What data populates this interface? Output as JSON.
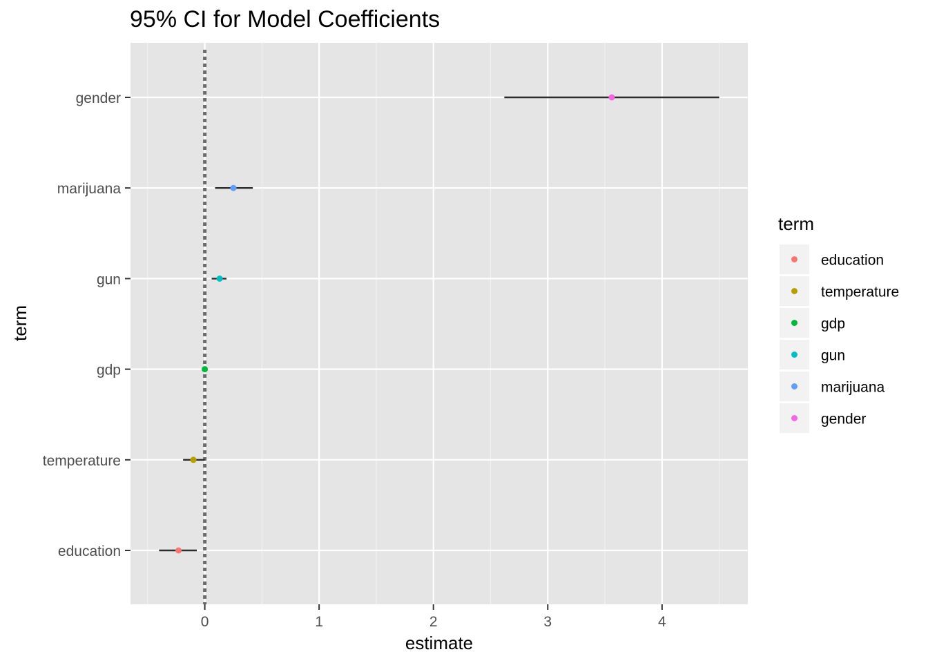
{
  "chart_data": {
    "type": "scatter",
    "title": "95% CI for Model Coefficients",
    "xlabel": "estimate",
    "ylabel": "term",
    "xlim": [
      -0.65,
      4.75
    ],
    "x_ticks": [
      0,
      1,
      2,
      3,
      4
    ],
    "x_tick_labels": [
      "0",
      "1",
      "2",
      "3",
      "4"
    ],
    "x_minor_ticks": [
      -0.5,
      0.5,
      1.5,
      2.5,
      3.5,
      4.5
    ],
    "reference_line": {
      "x": 0,
      "style": "dotted"
    },
    "grid": true,
    "legend": {
      "title": "term",
      "position": "right",
      "entries": [
        "education",
        "temperature",
        "gdp",
        "gun",
        "marijuana",
        "gender"
      ]
    },
    "series": [
      {
        "name": "education",
        "estimate": -0.23,
        "conf_low": -0.4,
        "conf_high": -0.07,
        "color": "#F8766D"
      },
      {
        "name": "temperature",
        "estimate": -0.1,
        "conf_low": -0.19,
        "conf_high": 0.0,
        "color": "#B79F00"
      },
      {
        "name": "gdp",
        "estimate": 0.0,
        "conf_low": 0.0,
        "conf_high": 0.0,
        "color": "#00BA38"
      },
      {
        "name": "gun",
        "estimate": 0.13,
        "conf_low": 0.06,
        "conf_high": 0.19,
        "color": "#00BFC4"
      },
      {
        "name": "marijuana",
        "estimate": 0.25,
        "conf_low": 0.09,
        "conf_high": 0.42,
        "color": "#619CFF"
      },
      {
        "name": "gender",
        "estimate": 3.56,
        "conf_low": 2.62,
        "conf_high": 4.5,
        "color": "#F564E3"
      }
    ]
  }
}
